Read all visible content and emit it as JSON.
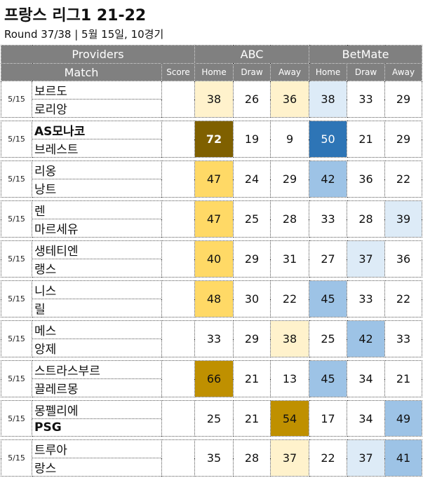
{
  "title": "프랑스 리그1 21-22",
  "subtitle": "Round 37/38  | 5월 15일, 10경기",
  "header": {
    "providers": "Providers",
    "match": "Match",
    "score": "Score",
    "provider1": "ABC",
    "provider2": "BetMate",
    "home": "Home",
    "draw": "Draw",
    "away": "Away"
  },
  "matches": [
    {
      "date": "5/15",
      "home": "보르도",
      "away": "로리앙",
      "home_bold": false,
      "away_bold": false,
      "abc": [
        38,
        26,
        36
      ],
      "bm": [
        38,
        33,
        29
      ]
    },
    {
      "date": "5/15",
      "home": "AS모나코",
      "away": "브레스트",
      "home_bold": true,
      "away_bold": false,
      "abc": [
        72,
        19,
        9
      ],
      "bm": [
        50,
        21,
        29
      ]
    },
    {
      "date": "5/15",
      "home": "리옹",
      "away": "낭트",
      "home_bold": false,
      "away_bold": false,
      "abc": [
        47,
        24,
        29
      ],
      "bm": [
        42,
        36,
        22
      ]
    },
    {
      "date": "5/15",
      "home": "렌",
      "away": "마르세유",
      "home_bold": false,
      "away_bold": false,
      "abc": [
        47,
        25,
        28
      ],
      "bm": [
        33,
        28,
        39
      ]
    },
    {
      "date": "5/15",
      "home": "생테티엔",
      "away": "랭스",
      "home_bold": false,
      "away_bold": false,
      "abc": [
        40,
        29,
        31
      ],
      "bm": [
        27,
        37,
        36
      ]
    },
    {
      "date": "5/15",
      "home": "니스",
      "away": "릴",
      "home_bold": false,
      "away_bold": false,
      "abc": [
        48,
        30,
        22
      ],
      "bm": [
        45,
        33,
        22
      ]
    },
    {
      "date": "5/15",
      "home": "메스",
      "away": "앙제",
      "home_bold": false,
      "away_bold": false,
      "abc": [
        33,
        29,
        38
      ],
      "bm": [
        25,
        42,
        33
      ]
    },
    {
      "date": "5/15",
      "home": "스트라스부르",
      "away": "끌레르몽",
      "home_bold": false,
      "away_bold": false,
      "abc": [
        66,
        21,
        13
      ],
      "bm": [
        45,
        34,
        21
      ]
    },
    {
      "date": "5/15",
      "home": "몽펠리에",
      "away": "PSG",
      "home_bold": false,
      "away_bold": true,
      "abc": [
        25,
        21,
        54
      ],
      "bm": [
        17,
        34,
        49
      ]
    },
    {
      "date": "5/15",
      "home": "트루아",
      "away": "랑스",
      "home_bold": false,
      "away_bold": false,
      "abc": [
        35,
        28,
        37
      ],
      "bm": [
        22,
        37,
        41
      ]
    }
  ],
  "colors": {
    "abc_scale": [
      "#ffffff",
      "#fff2cc",
      "#ffd966",
      "#bf9000",
      "#7f6000"
    ],
    "bm_scale": [
      "#ffffff",
      "#ddebf7",
      "#9dc3e6",
      "#2e75b6"
    ]
  }
}
